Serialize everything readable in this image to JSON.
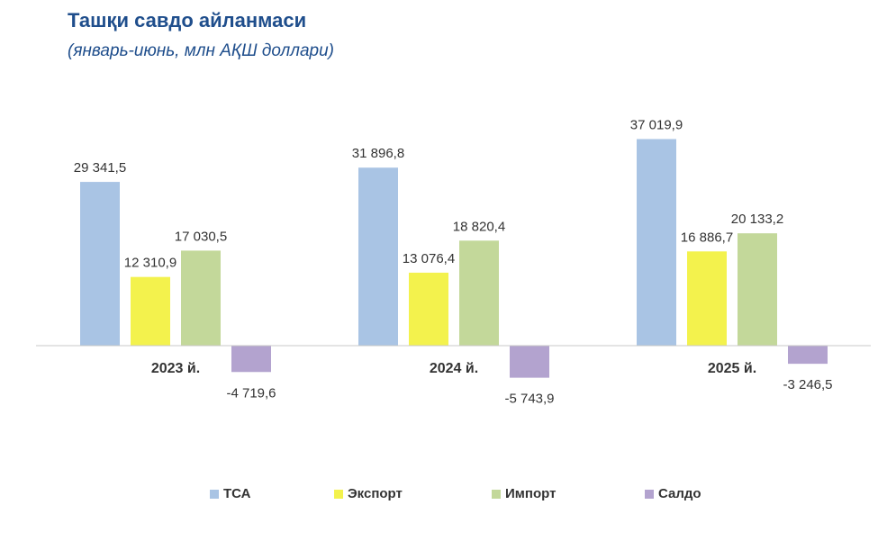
{
  "title": "Ташқи савдо айланмаси",
  "subtitle": "(январь-июнь, млн АҚШ доллари)",
  "chart_data": {
    "type": "bar",
    "categories": [
      "2023 й.",
      "2024 й.",
      "2025 й."
    ],
    "series": [
      {
        "name": "ТСА",
        "color": "#a9c4e4",
        "values": [
          29341.5,
          31896.8,
          37019.9
        ],
        "labels": [
          "29 341,5",
          "31 896,8",
          "37 019,9"
        ]
      },
      {
        "name": "Экспорт",
        "color": "#f3f24d",
        "values": [
          12310.9,
          13076.4,
          16886.7
        ],
        "labels": [
          "12 310,9",
          "13 076,4",
          "16 886,7"
        ]
      },
      {
        "name": "Импорт",
        "color": "#c3d89a",
        "values": [
          17030.5,
          18820.4,
          20133.2
        ],
        "labels": [
          "17 030,5",
          "18 820,4",
          "20 133,2"
        ]
      },
      {
        "name": "Салдо",
        "color": "#b3a3cf",
        "values": [
          -4719.6,
          -5743.9,
          -3246.5
        ],
        "labels": [
          "-4 719,6",
          "-5 743,9",
          "-3 246,5"
        ]
      }
    ],
    "legend_position": "bottom",
    "grid": false
  }
}
